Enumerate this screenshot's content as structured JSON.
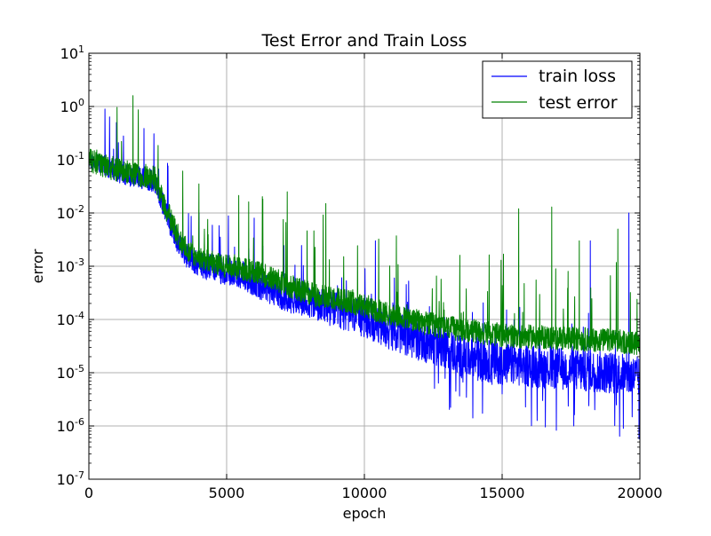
{
  "chart_data": {
    "type": "line",
    "title": "Test Error and Train Loss",
    "xlabel": "epoch",
    "ylabel": "error",
    "xlim": [
      0,
      20000
    ],
    "ylim": [
      1e-07,
      10
    ],
    "yscale": "log",
    "grid": true,
    "legend_position": "top-right",
    "x_ticks": [
      {
        "value": 0,
        "label": "0"
      },
      {
        "value": 5000,
        "label": "5000"
      },
      {
        "value": 10000,
        "label": "10000"
      },
      {
        "value": 15000,
        "label": "15000"
      },
      {
        "value": 20000,
        "label": "20000"
      }
    ],
    "y_ticks": [
      {
        "value": 10,
        "label_base": "10",
        "label_exp": "1"
      },
      {
        "value": 1,
        "label_base": "10",
        "label_exp": "0"
      },
      {
        "value": 0.1,
        "label_base": "10",
        "label_exp": "-1"
      },
      {
        "value": 0.01,
        "label_base": "10",
        "label_exp": "-2"
      },
      {
        "value": 0.001,
        "label_base": "10",
        "label_exp": "-3"
      },
      {
        "value": 0.0001,
        "label_base": "10",
        "label_exp": "-4"
      },
      {
        "value": 1e-05,
        "label_base": "10",
        "label_exp": "-5"
      },
      {
        "value": 1e-06,
        "label_base": "10",
        "label_exp": "-6"
      },
      {
        "value": 1e-07,
        "label_base": "10",
        "label_exp": "-7"
      }
    ],
    "series": [
      {
        "name": "train loss",
        "color": "#0000ff",
        "baseline": [
          [
            0,
            0.1
          ],
          [
            500,
            0.08
          ],
          [
            1000,
            0.06
          ],
          [
            1500,
            0.05
          ],
          [
            2000,
            0.045
          ],
          [
            2400,
            0.04
          ],
          [
            2800,
            0.01
          ],
          [
            3200,
            0.003
          ],
          [
            3600,
            0.0015
          ],
          [
            4200,
            0.001
          ],
          [
            5000,
            0.0008
          ],
          [
            5600,
            0.0007
          ],
          [
            6000,
            0.0005
          ],
          [
            7000,
            0.0003
          ],
          [
            8000,
            0.0002
          ],
          [
            9000,
            0.00015
          ],
          [
            10000,
            0.0001
          ],
          [
            11000,
            6e-05
          ],
          [
            12000,
            4e-05
          ],
          [
            13000,
            3e-05
          ],
          [
            13500,
            2e-05
          ],
          [
            15000,
            1.5e-05
          ],
          [
            17000,
            1.2e-05
          ],
          [
            19000,
            1e-05
          ],
          [
            20000,
            8e-06
          ]
        ],
        "peaks": [
          [
            500,
            4.0
          ],
          [
            1000,
            0.5
          ],
          [
            2700,
            0.02
          ],
          [
            4000,
            0.01
          ],
          [
            6000,
            0.008
          ],
          [
            8500,
            0.005
          ],
          [
            10400,
            0.003
          ],
          [
            11700,
            0.008
          ],
          [
            12700,
            0.004
          ],
          [
            15700,
            0.004
          ],
          [
            16900,
            0.01
          ],
          [
            18200,
            0.003
          ],
          [
            19600,
            0.01
          ]
        ],
        "dips": [
          [
            9500,
            3e-05
          ],
          [
            13300,
            8e-06
          ],
          [
            15000,
            4e-06
          ],
          [
            15500,
            2e-06
          ],
          [
            16500,
            2e-06
          ],
          [
            17600,
            1e-06
          ],
          [
            18300,
            6e-07
          ],
          [
            19400,
            9e-07
          ],
          [
            19900,
            3e-07
          ]
        ]
      },
      {
        "name": "test error",
        "color": "#008000",
        "baseline": [
          [
            0,
            0.1
          ],
          [
            500,
            0.08
          ],
          [
            1000,
            0.065
          ],
          [
            1500,
            0.055
          ],
          [
            2000,
            0.05
          ],
          [
            2400,
            0.045
          ],
          [
            2800,
            0.012
          ],
          [
            3200,
            0.004
          ],
          [
            3600,
            0.002
          ],
          [
            4200,
            0.0013
          ],
          [
            5000,
            0.001
          ],
          [
            5600,
            0.0009
          ],
          [
            6000,
            0.0008
          ],
          [
            7000,
            0.0005
          ],
          [
            8000,
            0.0003
          ],
          [
            9000,
            0.00025
          ],
          [
            10000,
            0.00018
          ],
          [
            11000,
            0.00012
          ],
          [
            12000,
            9e-05
          ],
          [
            13000,
            7e-05
          ],
          [
            14000,
            6e-05
          ],
          [
            15000,
            5e-05
          ],
          [
            17000,
            4.5e-05
          ],
          [
            19000,
            4e-05
          ],
          [
            20000,
            3.5e-05
          ]
        ],
        "peaks": [
          [
            100,
            2.5
          ],
          [
            500,
            3.5
          ],
          [
            1600,
            1.6
          ],
          [
            2500,
            0.15
          ],
          [
            3500,
            0.03
          ],
          [
            5500,
            0.03
          ],
          [
            6100,
            0.03
          ],
          [
            7200,
            0.025
          ],
          [
            8600,
            0.015
          ],
          [
            9500,
            0.013
          ],
          [
            11100,
            0.016
          ],
          [
            12700,
            0.005
          ],
          [
            14300,
            0.007
          ],
          [
            15600,
            0.012
          ],
          [
            16800,
            0.013
          ],
          [
            17800,
            0.003
          ],
          [
            19200,
            0.005
          ],
          [
            19900,
            0.004
          ]
        ],
        "dips": []
      }
    ]
  }
}
